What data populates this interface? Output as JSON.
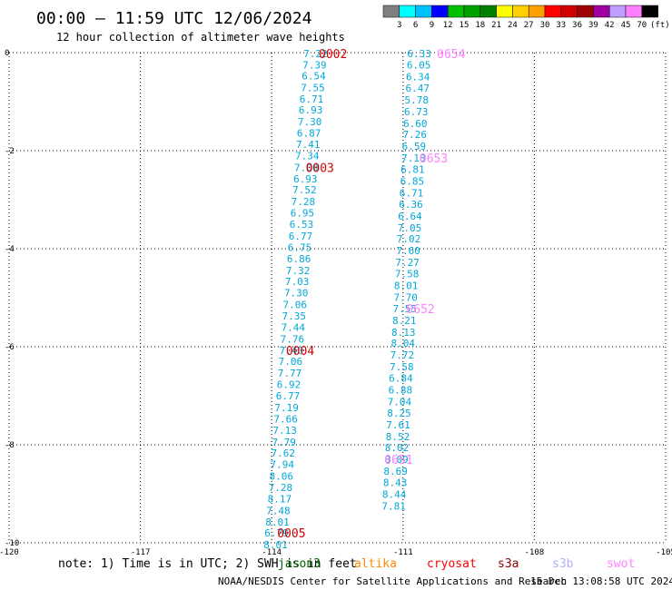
{
  "header": {
    "title": "00:00 – 11:59 UTC 12/06/2024",
    "subtitle": "12 hour collection of altimeter wave heights"
  },
  "legend": {
    "colors": [
      "#808080",
      "#00ffff",
      "#00c0ff",
      "#0000ff",
      "#00c000",
      "#00a000",
      "#008000",
      "#ffff00",
      "#ffd000",
      "#ffa000",
      "#ff0000",
      "#d00000",
      "#a00000",
      "#a000a0",
      "#c0a0ff",
      "#ff80ff",
      "#000000"
    ],
    "labels": [
      "3",
      "6",
      "9",
      "12",
      "15",
      "18",
      "21",
      "24",
      "27",
      "30",
      "33",
      "36",
      "39",
      "42",
      "45",
      "70"
    ],
    "unit": "(ft)"
  },
  "footer": {
    "note": "note:  1) Time is in UTC; 2) SWH is in feet",
    "satellites": [
      {
        "name": "jason3",
        "color": "#006400"
      },
      {
        "name": "altika",
        "color": "#ff8c00"
      },
      {
        "name": "cryosat",
        "color": "#ff0000"
      },
      {
        "name": "s3a",
        "color": "#8b0000"
      },
      {
        "name": "s3b",
        "color": "#b0b0ff"
      },
      {
        "name": "swot",
        "color": "#ff80ff"
      }
    ],
    "credit": "NOAA/NESDIS Center for Satellite Applications and Research",
    "timestamp": "15 Dec 13:08:58 UTC 2024"
  },
  "chart_data": {
    "type": "scatter",
    "xlim": [
      -120,
      -105
    ],
    "ylim": [
      -10,
      0
    ],
    "xticks": [
      -120,
      -117,
      -114,
      -111,
      -108,
      -105
    ],
    "yticks": [
      0,
      -2,
      -4,
      -6,
      -8,
      -10
    ],
    "grid": true,
    "series": [
      {
        "name": "swot",
        "color": "#00a8d8",
        "points": [
          {
            "lon": -113.0,
            "lat": -0.02,
            "swh": "7.22"
          },
          {
            "lon": -113.02,
            "lat": -0.25,
            "swh": "7.39"
          },
          {
            "lon": -113.04,
            "lat": -0.47,
            "swh": "6.54"
          },
          {
            "lon": -113.06,
            "lat": -0.71,
            "swh": "7.55"
          },
          {
            "lon": -113.09,
            "lat": -0.94,
            "swh": "6.71"
          },
          {
            "lon": -113.11,
            "lat": -1.17,
            "swh": "6.93"
          },
          {
            "lon": -113.13,
            "lat": -1.41,
            "swh": "7.30"
          },
          {
            "lon": -113.15,
            "lat": -1.64,
            "swh": "6.87"
          },
          {
            "lon": -113.17,
            "lat": -1.87,
            "swh": "7.41"
          },
          {
            "lon": -113.19,
            "lat": -2.1,
            "swh": "7.34"
          },
          {
            "lon": -113.21,
            "lat": -2.34,
            "swh": "7.00"
          },
          {
            "lon": -113.23,
            "lat": -2.57,
            "swh": "6.93"
          },
          {
            "lon": -113.25,
            "lat": -2.8,
            "swh": "7.52"
          },
          {
            "lon": -113.28,
            "lat": -3.04,
            "swh": "7.28"
          },
          {
            "lon": -113.3,
            "lat": -3.27,
            "swh": "6.95"
          },
          {
            "lon": -113.32,
            "lat": -3.5,
            "swh": "6.53"
          },
          {
            "lon": -113.34,
            "lat": -3.74,
            "swh": "6.77"
          },
          {
            "lon": -113.36,
            "lat": -3.97,
            "swh": "6.75"
          },
          {
            "lon": -113.38,
            "lat": -4.2,
            "swh": "6.86"
          },
          {
            "lon": -113.4,
            "lat": -4.44,
            "swh": "7.32"
          },
          {
            "lon": -113.42,
            "lat": -4.67,
            "swh": "7.03"
          },
          {
            "lon": -113.44,
            "lat": -4.9,
            "swh": "7.30"
          },
          {
            "lon": -113.47,
            "lat": -5.14,
            "swh": "7.06"
          },
          {
            "lon": -113.49,
            "lat": -5.37,
            "swh": "7.35"
          },
          {
            "lon": -113.51,
            "lat": -5.6,
            "swh": "7.44"
          },
          {
            "lon": -113.53,
            "lat": -5.84,
            "swh": "7.76"
          },
          {
            "lon": -113.55,
            "lat": -6.07,
            "swh": "7.40"
          },
          {
            "lon": -113.57,
            "lat": -6.3,
            "swh": "7.06"
          },
          {
            "lon": -113.59,
            "lat": -6.54,
            "swh": "7.77"
          },
          {
            "lon": -113.61,
            "lat": -6.77,
            "swh": "6.92"
          },
          {
            "lon": -113.63,
            "lat": -7.0,
            "swh": "6.77"
          },
          {
            "lon": -113.66,
            "lat": -7.24,
            "swh": "7.19"
          },
          {
            "lon": -113.68,
            "lat": -7.47,
            "swh": "7.66"
          },
          {
            "lon": -113.7,
            "lat": -7.7,
            "swh": "7.13"
          },
          {
            "lon": -113.72,
            "lat": -7.94,
            "swh": "7.79"
          },
          {
            "lon": -113.74,
            "lat": -8.17,
            "swh": "7.62"
          },
          {
            "lon": -113.76,
            "lat": -8.4,
            "swh": "7.94"
          },
          {
            "lon": -113.78,
            "lat": -8.64,
            "swh": "8.06"
          },
          {
            "lon": -113.8,
            "lat": -8.87,
            "swh": "7.28"
          },
          {
            "lon": -113.82,
            "lat": -9.1,
            "swh": "8.17"
          },
          {
            "lon": -113.85,
            "lat": -9.34,
            "swh": "7.48"
          },
          {
            "lon": -113.87,
            "lat": -9.57,
            "swh": "8.01"
          },
          {
            "lon": -113.89,
            "lat": -9.8,
            "swh": "6.79"
          },
          {
            "lon": -113.91,
            "lat": -10.04,
            "swh": "8.01"
          }
        ]
      },
      {
        "name": "swot",
        "color": "#00a8d8",
        "points": [
          {
            "lon": -110.63,
            "lat": -0.02,
            "swh": "6.33"
          },
          {
            "lon": -110.64,
            "lat": -0.25,
            "swh": "6.05"
          },
          {
            "lon": -110.66,
            "lat": -0.49,
            "swh": "6.34"
          },
          {
            "lon": -110.67,
            "lat": -0.72,
            "swh": "6.47"
          },
          {
            "lon": -110.69,
            "lat": -0.96,
            "swh": "5.78"
          },
          {
            "lon": -110.7,
            "lat": -1.2,
            "swh": "6.73"
          },
          {
            "lon": -110.72,
            "lat": -1.44,
            "swh": "6.60"
          },
          {
            "lon": -110.73,
            "lat": -1.67,
            "swh": "7.26"
          },
          {
            "lon": -110.75,
            "lat": -1.91,
            "swh": "6.59"
          },
          {
            "lon": -110.76,
            "lat": -2.15,
            "swh": "7.18"
          },
          {
            "lon": -110.78,
            "lat": -2.38,
            "swh": "6.81"
          },
          {
            "lon": -110.79,
            "lat": -2.62,
            "swh": "6.85"
          },
          {
            "lon": -110.81,
            "lat": -2.86,
            "swh": "6.71"
          },
          {
            "lon": -110.82,
            "lat": -3.09,
            "swh": "6.36"
          },
          {
            "lon": -110.84,
            "lat": -3.33,
            "swh": "6.64"
          },
          {
            "lon": -110.85,
            "lat": -3.57,
            "swh": "7.05"
          },
          {
            "lon": -110.87,
            "lat": -3.8,
            "swh": "7.02"
          },
          {
            "lon": -110.88,
            "lat": -4.04,
            "swh": "7.60"
          },
          {
            "lon": -110.9,
            "lat": -4.28,
            "swh": "7.27"
          },
          {
            "lon": -110.91,
            "lat": -4.51,
            "swh": "7.58"
          },
          {
            "lon": -110.93,
            "lat": -4.75,
            "swh": "8.01"
          },
          {
            "lon": -110.94,
            "lat": -4.99,
            "swh": "7.70"
          },
          {
            "lon": -110.96,
            "lat": -5.22,
            "swh": "7.55"
          },
          {
            "lon": -110.97,
            "lat": -5.46,
            "swh": "8.21"
          },
          {
            "lon": -110.99,
            "lat": -5.7,
            "swh": "8.13"
          },
          {
            "lon": -111.0,
            "lat": -5.93,
            "swh": "8.04"
          },
          {
            "lon": -111.02,
            "lat": -6.17,
            "swh": "7.72"
          },
          {
            "lon": -111.03,
            "lat": -6.41,
            "swh": "7.58"
          },
          {
            "lon": -111.05,
            "lat": -6.64,
            "swh": "6.84"
          },
          {
            "lon": -111.06,
            "lat": -6.88,
            "swh": "6.88"
          },
          {
            "lon": -111.08,
            "lat": -7.12,
            "swh": "7.04"
          },
          {
            "lon": -111.09,
            "lat": -7.35,
            "swh": "8.25"
          },
          {
            "lon": -111.11,
            "lat": -7.59,
            "swh": "7.61"
          },
          {
            "lon": -111.12,
            "lat": -7.83,
            "swh": "8.52"
          },
          {
            "lon": -111.14,
            "lat": -8.06,
            "swh": "8.02"
          },
          {
            "lon": -111.15,
            "lat": -8.3,
            "swh": "8.09"
          },
          {
            "lon": -111.17,
            "lat": -8.54,
            "swh": "8.69"
          },
          {
            "lon": -111.18,
            "lat": -8.77,
            "swh": "8.43"
          },
          {
            "lon": -111.2,
            "lat": -9.01,
            "swh": "8.44"
          },
          {
            "lon": -111.21,
            "lat": -9.25,
            "swh": "7.81"
          }
        ]
      }
    ],
    "pass_times": [
      {
        "label": "0002",
        "lon": -112.6,
        "lat": -0.02,
        "color": "#d00000"
      },
      {
        "label": "0003",
        "lon": -112.9,
        "lat": -2.34,
        "color": "#d00000"
      },
      {
        "label": "0004",
        "lon": -113.35,
        "lat": -6.07,
        "color": "#d00000"
      },
      {
        "label": "0005",
        "lon": -113.55,
        "lat": -9.8,
        "color": "#d00000"
      },
      {
        "label": "0654",
        "lon": -109.9,
        "lat": -0.02,
        "color": "#ff80ff"
      },
      {
        "label": "0653",
        "lon": -110.3,
        "lat": -2.15,
        "color": "#ff80ff"
      },
      {
        "label": "0652",
        "lon": -110.6,
        "lat": -5.22,
        "color": "#ff80ff"
      },
      {
        "label": "0651",
        "lon": -111.1,
        "lat": -8.3,
        "color": "#ff80ff"
      }
    ]
  }
}
